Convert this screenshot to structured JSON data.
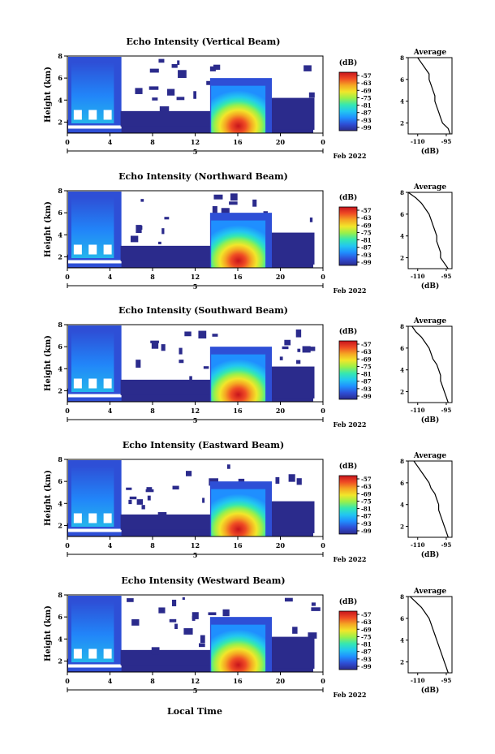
{
  "figure": {
    "xlabel": "Local Time",
    "colorbar_unit": "(dB)",
    "profile_title": "Average",
    "profile_xlabel": "(dB)"
  },
  "chart_data": [
    {
      "type": "heatmap",
      "title": "Echo Intensity (Vertical Beam)",
      "ylabel": "Height (km)",
      "x_ticks": [
        "0",
        "4",
        "8",
        "12",
        "16",
        "20",
        "0"
      ],
      "date_label": "5",
      "date_suffix": "Feb 2022",
      "y_ticks": [
        "2",
        "4",
        "6",
        "8"
      ],
      "ylim": [
        1.0,
        8.0
      ],
      "xlim": [
        0,
        24
      ],
      "colorbar_ticks": [
        "-57",
        "-63",
        "-69",
        "-75",
        "-81",
        "-87",
        "-93",
        "-99"
      ],
      "profile": {
        "x_ticks": [
          "-110",
          "-95"
        ],
        "y_ticks": [
          "2",
          "4",
          "6",
          "8"
        ],
        "heights": [
          1.0,
          1.5,
          2.0,
          2.5,
          3.0,
          3.5,
          4.0,
          4.5,
          5.0,
          5.5,
          6.0,
          6.5,
          7.0,
          7.5,
          8.0
        ],
        "values": [
          -93,
          -94,
          -97,
          -98,
          -99,
          -100,
          -101,
          -101,
          -102,
          -103,
          -104,
          -104,
          -106,
          -108,
          -110
        ]
      }
    },
    {
      "type": "heatmap",
      "title": "Echo Intensity (Northward Beam)",
      "ylabel": "Height (km)",
      "x_ticks": [
        "0",
        "4",
        "8",
        "12",
        "16",
        "20",
        "0"
      ],
      "date_label": "5",
      "date_suffix": "Feb 2022",
      "y_ticks": [
        "2",
        "4",
        "6",
        "8"
      ],
      "ylim": [
        1.0,
        8.0
      ],
      "xlim": [
        0,
        24
      ],
      "colorbar_ticks": [
        "-57",
        "-63",
        "-69",
        "-75",
        "-81",
        "-87",
        "-93",
        "-99"
      ],
      "profile": {
        "x_ticks": [
          "-110",
          "-95"
        ],
        "y_ticks": [
          "2",
          "4",
          "6",
          "8"
        ],
        "heights": [
          1.0,
          1.5,
          2.0,
          2.5,
          3.0,
          3.5,
          4.0,
          4.5,
          5.0,
          5.5,
          6.0,
          6.5,
          7.0,
          7.5,
          8.0
        ],
        "values": [
          -94,
          -96,
          -98,
          -98,
          -99,
          -100,
          -100,
          -101,
          -102,
          -103,
          -104,
          -106,
          -108,
          -111,
          -115
        ]
      }
    },
    {
      "type": "heatmap",
      "title": "Echo Intensity (Southward Beam)",
      "ylabel": "Height (km)",
      "x_ticks": [
        "0",
        "4",
        "8",
        "12",
        "16",
        "20",
        "0"
      ],
      "date_label": "5",
      "date_suffix": "Feb 2022",
      "y_ticks": [
        "2",
        "4",
        "6",
        "8"
      ],
      "ylim": [
        1.0,
        8.0
      ],
      "xlim": [
        0,
        24
      ],
      "colorbar_ticks": [
        "-57",
        "-63",
        "-69",
        "-75",
        "-81",
        "-87",
        "-93",
        "-99"
      ],
      "profile": {
        "x_ticks": [
          "-110",
          "-95"
        ],
        "y_ticks": [
          "2",
          "4",
          "6",
          "8"
        ],
        "heights": [
          1.0,
          1.5,
          2.0,
          2.5,
          3.0,
          3.5,
          4.0,
          4.5,
          5.0,
          5.5,
          6.0,
          6.5,
          7.0,
          7.5,
          8.0
        ],
        "values": [
          -94,
          -95,
          -96,
          -97,
          -98,
          -98,
          -99,
          -100,
          -102,
          -103,
          -104,
          -106,
          -108,
          -111,
          -113
        ]
      }
    },
    {
      "type": "heatmap",
      "title": "Echo Intensity (Eastward Beam)",
      "ylabel": "Height (km)",
      "x_ticks": [
        "0",
        "4",
        "8",
        "12",
        "16",
        "20",
        "0"
      ],
      "date_label": "5",
      "date_suffix": "Feb 2022",
      "y_ticks": [
        "2",
        "4",
        "6",
        "8"
      ],
      "ylim": [
        1.0,
        8.0
      ],
      "xlim": [
        0,
        24
      ],
      "colorbar_ticks": [
        "-57",
        "-63",
        "-69",
        "-75",
        "-81",
        "-87",
        "-93",
        "-99"
      ],
      "profile": {
        "x_ticks": [
          "-110",
          "-95"
        ],
        "y_ticks": [
          "2",
          "4",
          "6",
          "8"
        ],
        "heights": [
          1.0,
          1.5,
          2.0,
          2.5,
          3.0,
          3.5,
          4.0,
          4.5,
          5.0,
          5.5,
          6.0,
          6.5,
          7.0,
          7.5,
          8.0
        ],
        "values": [
          -94,
          -95,
          -96,
          -97,
          -98,
          -99,
          -99,
          -100,
          -101,
          -103,
          -104,
          -106,
          -108,
          -110,
          -112
        ]
      }
    },
    {
      "type": "heatmap",
      "title": "Echo Intensity (Westward Beam)",
      "ylabel": "Height (km)",
      "x_ticks": [
        "0",
        "4",
        "8",
        "12",
        "16",
        "20",
        "0"
      ],
      "date_label": "5",
      "date_suffix": "Feb 2022",
      "y_ticks": [
        "2",
        "4",
        "6",
        "8"
      ],
      "ylim": [
        1.0,
        8.0
      ],
      "xlim": [
        0,
        24
      ],
      "colorbar_ticks": [
        "-57",
        "-63",
        "-69",
        "-75",
        "-81",
        "-87",
        "-93",
        "-99"
      ],
      "profile": {
        "x_ticks": [
          "-110",
          "-95"
        ],
        "y_ticks": [
          "2",
          "4",
          "6",
          "8"
        ],
        "heights": [
          1.0,
          1.5,
          2.0,
          2.5,
          3.0,
          3.5,
          4.0,
          4.5,
          5.0,
          5.5,
          6.0,
          6.5,
          7.0,
          7.5,
          8.0
        ],
        "values": [
          -94,
          -95,
          -96,
          -97,
          -98,
          -99,
          -100,
          -101,
          -102,
          -103,
          -104,
          -106,
          -108,
          -111,
          -114
        ]
      }
    }
  ],
  "colors": {
    "colormap": [
      "#2b2b8c",
      "#2e4fd6",
      "#1f8fff",
      "#22c7f0",
      "#35e8b0",
      "#9af04a",
      "#f2e62a",
      "#f5a623",
      "#ef4b24",
      "#c8141c"
    ]
  }
}
